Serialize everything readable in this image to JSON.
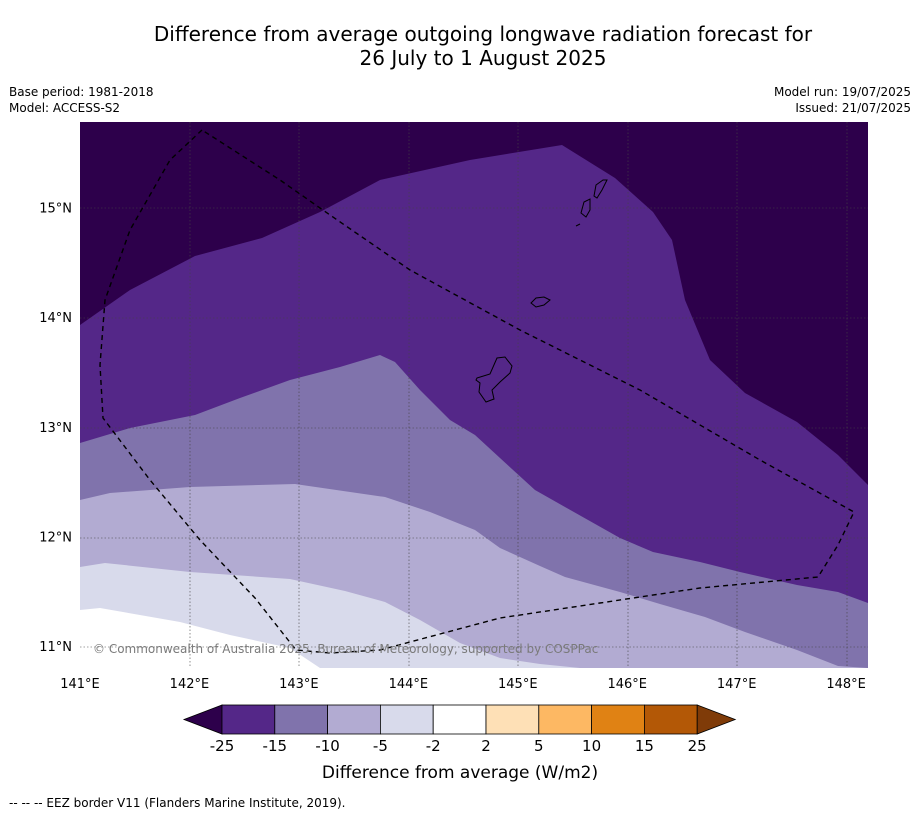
{
  "title": {
    "line1": "Difference from average outgoing longwave radiation forecast for",
    "line2": "26 July to 1 August 2025"
  },
  "meta_left": {
    "base_period": "Base period: 1981-2018",
    "model": "Model: ACCESS-S2"
  },
  "meta_right": {
    "model_run": "Model run: 19/07/2025",
    "issued": "Issued: 21/07/2025"
  },
  "map": {
    "lon_labels": [
      "141°E",
      "142°E",
      "143°E",
      "144°E",
      "145°E",
      "146°E",
      "147°E",
      "148°E"
    ],
    "lat_labels": [
      "15°N",
      "14°N",
      "13°N",
      "12°N",
      "11°N"
    ],
    "lon_values": [
      141,
      142,
      143,
      144,
      145,
      146,
      147,
      148
    ],
    "lat_values": [
      15,
      14,
      13,
      12,
      11
    ],
    "extent": {
      "lon_min": 141,
      "lon_max": 148.2,
      "lat_min": 10.8,
      "lat_max": 15.78
    },
    "copyright": "© Commonwealth of Australia 2025, Bureau of Meteorology, supported by COSPPac"
  },
  "colorbar": {
    "ticks": [
      "-25",
      "-15",
      "-10",
      "-5",
      "-2",
      "2",
      "5",
      "10",
      "15",
      "25"
    ],
    "colors": [
      "#2d004b",
      "#542788",
      "#8073ac",
      "#b2abd2",
      "#d8daeb",
      "#ffffff",
      "#fee0b6",
      "#fdb863",
      "#e08214",
      "#b35806",
      "#7f3b08"
    ],
    "label": "Difference from average (W/m2)"
  },
  "footer": "--  --  -- EEZ border V11 (Flanders Marine Institute, 2019)."
}
